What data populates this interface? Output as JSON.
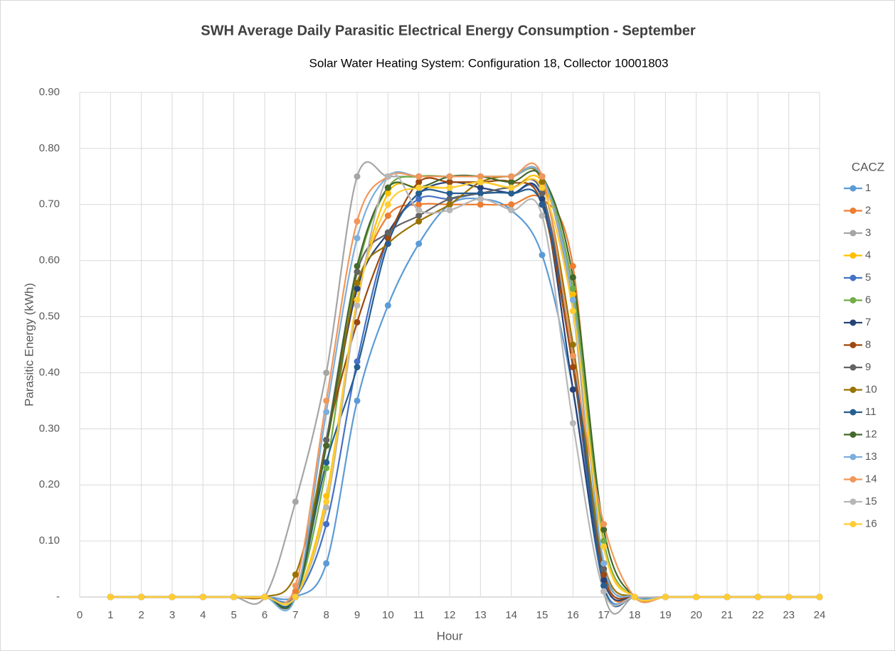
{
  "chart_data": {
    "type": "line",
    "title": "SWH Average Daily Parasitic Electrical Energy Consumption - September",
    "subtitle": "Solar Water Heating System: Configuration 18, Collector 10001803",
    "x_label": "Hour",
    "y_label": "Parasitic Energy (kWh)",
    "legend_title": "CACZ",
    "legend": "right",
    "grid": true,
    "smooth": true,
    "xlim": [
      0,
      24
    ],
    "xticks": [
      0,
      1,
      2,
      3,
      4,
      5,
      6,
      7,
      8,
      9,
      10,
      11,
      12,
      13,
      14,
      15,
      16,
      17,
      18,
      19,
      20,
      21,
      22,
      23,
      24
    ],
    "ylim": [
      0,
      0.9
    ],
    "yticks": [
      {
        "value": 0,
        "label": "-"
      },
      {
        "value": 0.1,
        "label": "0.10"
      },
      {
        "value": 0.2,
        "label": "0.20"
      },
      {
        "value": 0.3,
        "label": "0.30"
      },
      {
        "value": 0.4,
        "label": "0.40"
      },
      {
        "value": 0.5,
        "label": "0.50"
      },
      {
        "value": 0.6,
        "label": "0.60"
      },
      {
        "value": 0.7,
        "label": "0.70"
      },
      {
        "value": 0.8,
        "label": "0.80"
      },
      {
        "value": 0.9,
        "label": "0.90"
      }
    ],
    "x": [
      1,
      2,
      3,
      4,
      5,
      6,
      7,
      8,
      9,
      10,
      11,
      12,
      13,
      14,
      15,
      16,
      17,
      18,
      19,
      20,
      21,
      22,
      23,
      24
    ],
    "series": [
      {
        "name": "1",
        "color": "#5B9BD5",
        "values": [
          0,
          0,
          0,
          0,
          0,
          0,
          0,
          0.06,
          0.35,
          0.52,
          0.63,
          0.7,
          0.71,
          0.69,
          0.61,
          0.37,
          0.02,
          0,
          0,
          0,
          0,
          0,
          0,
          0
        ]
      },
      {
        "name": "2",
        "color": "#ED7D31",
        "values": [
          0,
          0,
          0,
          0,
          0,
          0,
          0.01,
          0.27,
          0.55,
          0.68,
          0.7,
          0.7,
          0.7,
          0.7,
          0.71,
          0.59,
          0.05,
          0,
          0,
          0,
          0,
          0,
          0,
          0
        ]
      },
      {
        "name": "3",
        "color": "#A5A5A5",
        "values": [
          0,
          0,
          0,
          0,
          0,
          0,
          0.17,
          0.4,
          0.75,
          0.75,
          0.75,
          0.75,
          0.75,
          0.75,
          0.75,
          0.51,
          0.01,
          0,
          0,
          0,
          0,
          0,
          0,
          0
        ]
      },
      {
        "name": "4",
        "color": "#FFC000",
        "values": [
          0,
          0,
          0,
          0,
          0,
          0,
          0,
          0.18,
          0.53,
          0.72,
          0.73,
          0.73,
          0.74,
          0.73,
          0.74,
          0.54,
          0.09,
          0,
          0,
          0,
          0,
          0,
          0,
          0
        ]
      },
      {
        "name": "5",
        "color": "#4472C4",
        "values": [
          0,
          0,
          0,
          0,
          0,
          0,
          0,
          0.13,
          0.42,
          0.64,
          0.71,
          0.71,
          0.72,
          0.72,
          0.71,
          0.41,
          0.02,
          0,
          0,
          0,
          0,
          0,
          0,
          0
        ]
      },
      {
        "name": "6",
        "color": "#70AD47",
        "values": [
          0,
          0,
          0,
          0,
          0,
          0,
          0,
          0.23,
          0.58,
          0.73,
          0.75,
          0.75,
          0.75,
          0.75,
          0.75,
          0.55,
          0.1,
          0,
          0,
          0,
          0,
          0,
          0,
          0
        ]
      },
      {
        "name": "7",
        "color": "#264478",
        "values": [
          0,
          0,
          0,
          0,
          0,
          0,
          0,
          0.27,
          0.55,
          0.65,
          0.72,
          0.74,
          0.73,
          0.72,
          0.71,
          0.37,
          0.03,
          0,
          0,
          0,
          0,
          0,
          0,
          0
        ]
      },
      {
        "name": "8",
        "color": "#9E480E",
        "values": [
          0,
          0,
          0,
          0,
          0,
          0,
          0,
          0.28,
          0.49,
          0.64,
          0.74,
          0.74,
          0.74,
          0.74,
          0.7,
          0.41,
          0.04,
          0,
          0,
          0,
          0,
          0,
          0,
          0
        ]
      },
      {
        "name": "9",
        "color": "#636363",
        "values": [
          0,
          0,
          0,
          0,
          0,
          0,
          0,
          0.28,
          0.58,
          0.65,
          0.68,
          0.71,
          0.72,
          0.73,
          0.72,
          0.43,
          0.05,
          0,
          0,
          0,
          0,
          0,
          0,
          0
        ]
      },
      {
        "name": "10",
        "color": "#997300",
        "values": [
          0,
          0,
          0,
          0,
          0,
          0,
          0.04,
          0.27,
          0.56,
          0.63,
          0.67,
          0.7,
          0.74,
          0.75,
          0.74,
          0.45,
          0.06,
          0,
          0,
          0,
          0,
          0,
          0,
          0
        ]
      },
      {
        "name": "11",
        "color": "#255E91",
        "values": [
          0,
          0,
          0,
          0,
          0,
          0,
          0,
          0.24,
          0.41,
          0.63,
          0.72,
          0.72,
          0.72,
          0.72,
          0.7,
          0.43,
          0.02,
          0,
          0,
          0,
          0,
          0,
          0,
          0
        ]
      },
      {
        "name": "12",
        "color": "#43682B",
        "values": [
          0,
          0,
          0,
          0,
          0,
          0,
          0,
          0.27,
          0.59,
          0.73,
          0.73,
          0.75,
          0.75,
          0.74,
          0.75,
          0.57,
          0.12,
          0,
          0,
          0,
          0,
          0,
          0,
          0
        ]
      },
      {
        "name": "13",
        "color": "#7CAFDD",
        "values": [
          0,
          0,
          0,
          0,
          0,
          0,
          0,
          0.33,
          0.64,
          0.75,
          0.75,
          0.75,
          0.75,
          0.75,
          0.75,
          0.53,
          0.06,
          0,
          0,
          0,
          0,
          0,
          0,
          0
        ]
      },
      {
        "name": "14",
        "color": "#F1975A",
        "values": [
          0,
          0,
          0,
          0,
          0,
          0,
          0.02,
          0.35,
          0.67,
          0.75,
          0.75,
          0.75,
          0.75,
          0.75,
          0.75,
          0.43,
          0.13,
          0,
          0,
          0,
          0,
          0,
          0,
          0
        ]
      },
      {
        "name": "15",
        "color": "#B7B7B7",
        "values": [
          0,
          0,
          0,
          0,
          0,
          0,
          0,
          0.16,
          0.52,
          0.75,
          0.69,
          0.69,
          0.71,
          0.69,
          0.68,
          0.31,
          0.01,
          0,
          0,
          0,
          0,
          0,
          0,
          0
        ]
      },
      {
        "name": "16",
        "color": "#FFCD33",
        "values": [
          0,
          0,
          0,
          0,
          0,
          0,
          0,
          0.17,
          0.53,
          0.7,
          0.73,
          0.73,
          0.74,
          0.73,
          0.73,
          0.51,
          0.09,
          0,
          0,
          0,
          0,
          0,
          0,
          0
        ]
      }
    ]
  }
}
